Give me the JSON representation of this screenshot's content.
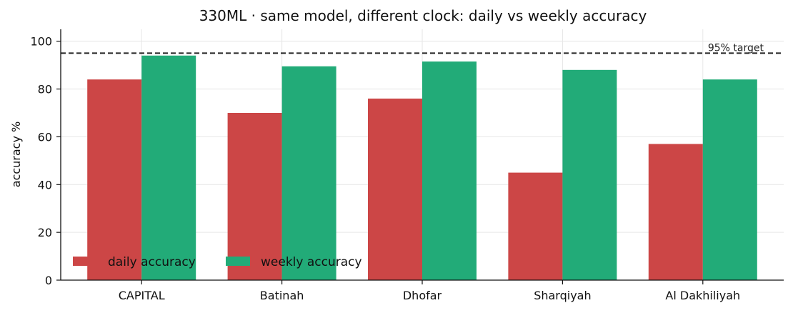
{
  "chart_data": {
    "type": "bar",
    "title": "330ML · same model, different clock: daily vs weekly accuracy",
    "xlabel": "",
    "ylabel": "accuracy %",
    "categories": [
      "CAPITAL",
      "Batinah",
      "Dhofar",
      "Sharqiyah",
      "Al Dakhiliyah"
    ],
    "series": [
      {
        "name": "daily accuracy",
        "values": [
          84,
          70,
          76,
          45,
          57
        ],
        "color": "#cc4646"
      },
      {
        "name": "weekly accuracy",
        "values": [
          94,
          89.5,
          91.5,
          88,
          84
        ],
        "color": "#22ab78"
      }
    ],
    "ylim": [
      0,
      105
    ],
    "yticks": [
      0,
      20,
      40,
      60,
      80,
      100
    ],
    "grid": true,
    "legend": {
      "placement": "lower-left"
    },
    "reference_line": {
      "value": 95,
      "label": "95% target",
      "style": "dashed",
      "color": "#222222"
    }
  }
}
